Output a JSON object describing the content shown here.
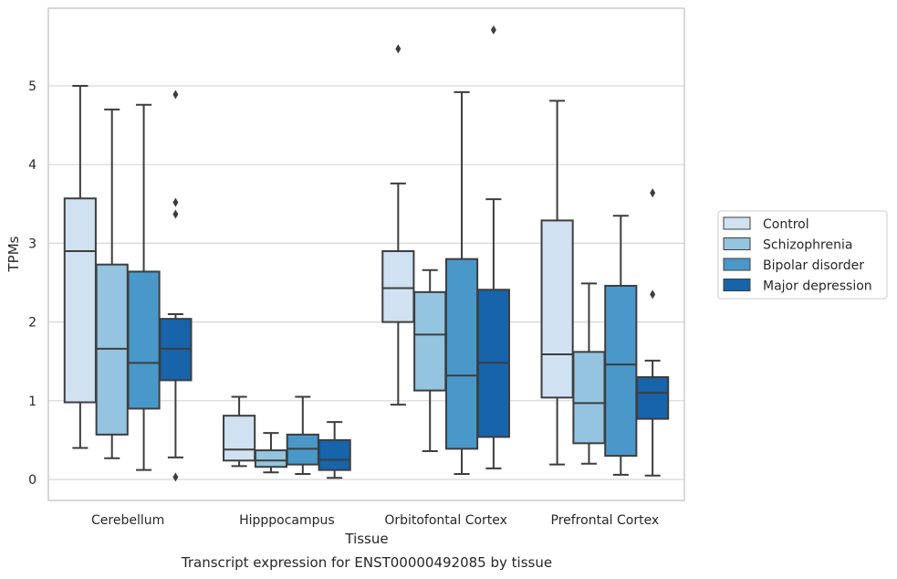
{
  "chart_data": {
    "type": "box",
    "title": "Transcript expression for ENST00000492085 by tissue",
    "xlabel": "Tissue",
    "ylabel": "TPMs",
    "ylim": [
      -0.25,
      5.95
    ],
    "yticks": [
      0,
      1,
      2,
      3,
      4,
      5
    ],
    "grid": true,
    "legend_position": "right",
    "categories": [
      "Cerebellum",
      "Hipppocampus",
      "Orbitofontal Cortex",
      "Prefrontal Cortex"
    ],
    "series": [
      {
        "name": "Control",
        "color": "#d0e1f2",
        "boxes": [
          {
            "whislo": 0.4,
            "q1": 0.98,
            "med": 2.9,
            "q3": 3.57,
            "whishi": 5.0,
            "fliers": []
          },
          {
            "whislo": 0.17,
            "q1": 0.24,
            "med": 0.38,
            "q3": 0.81,
            "whishi": 1.05,
            "fliers": []
          },
          {
            "whislo": 0.95,
            "q1": 2.0,
            "med": 2.43,
            "q3": 2.9,
            "whishi": 3.76,
            "fliers": [
              5.47
            ]
          },
          {
            "whislo": 0.19,
            "q1": 1.04,
            "med": 1.59,
            "q3": 3.29,
            "whishi": 4.81,
            "fliers": []
          }
        ]
      },
      {
        "name": "Schizophrenia",
        "color": "#94c4df",
        "boxes": [
          {
            "whislo": 0.27,
            "q1": 0.57,
            "med": 1.66,
            "q3": 2.73,
            "whishi": 4.7,
            "fliers": []
          },
          {
            "whislo": 0.09,
            "q1": 0.16,
            "med": 0.24,
            "q3": 0.37,
            "whishi": 0.59,
            "fliers": []
          },
          {
            "whislo": 0.36,
            "q1": 1.13,
            "med": 1.84,
            "q3": 2.38,
            "whishi": 2.66,
            "fliers": []
          },
          {
            "whislo": 0.2,
            "q1": 0.46,
            "med": 0.97,
            "q3": 1.62,
            "whishi": 2.49,
            "fliers": []
          }
        ]
      },
      {
        "name": "Bipolar disorder",
        "color": "#4a98c9",
        "boxes": [
          {
            "whislo": 0.12,
            "q1": 0.9,
            "med": 1.48,
            "q3": 2.64,
            "whishi": 4.76,
            "fliers": []
          },
          {
            "whislo": 0.07,
            "q1": 0.19,
            "med": 0.39,
            "q3": 0.57,
            "whishi": 1.05,
            "fliers": []
          },
          {
            "whislo": 0.07,
            "q1": 0.39,
            "med": 1.32,
            "q3": 2.8,
            "whishi": 4.92,
            "fliers": []
          },
          {
            "whislo": 0.06,
            "q1": 0.3,
            "med": 1.46,
            "q3": 2.46,
            "whishi": 3.35,
            "fliers": []
          }
        ]
      },
      {
        "name": "Major depression",
        "color": "#1764ab",
        "boxes": [
          {
            "whislo": 0.28,
            "q1": 1.26,
            "med": 1.66,
            "q3": 2.04,
            "whishi": 2.1,
            "fliers": [
              4.89,
              3.52,
              3.37,
              0.03
            ]
          },
          {
            "whislo": 0.02,
            "q1": 0.12,
            "med": 0.25,
            "q3": 0.5,
            "whishi": 0.73,
            "fliers": []
          },
          {
            "whislo": 0.14,
            "q1": 0.54,
            "med": 1.48,
            "q3": 2.41,
            "whishi": 3.56,
            "fliers": [
              5.71
            ]
          },
          {
            "whislo": 0.05,
            "q1": 0.77,
            "med": 1.1,
            "q3": 1.3,
            "whishi": 1.51,
            "fliers": [
              3.64,
              2.35
            ]
          }
        ]
      }
    ]
  }
}
